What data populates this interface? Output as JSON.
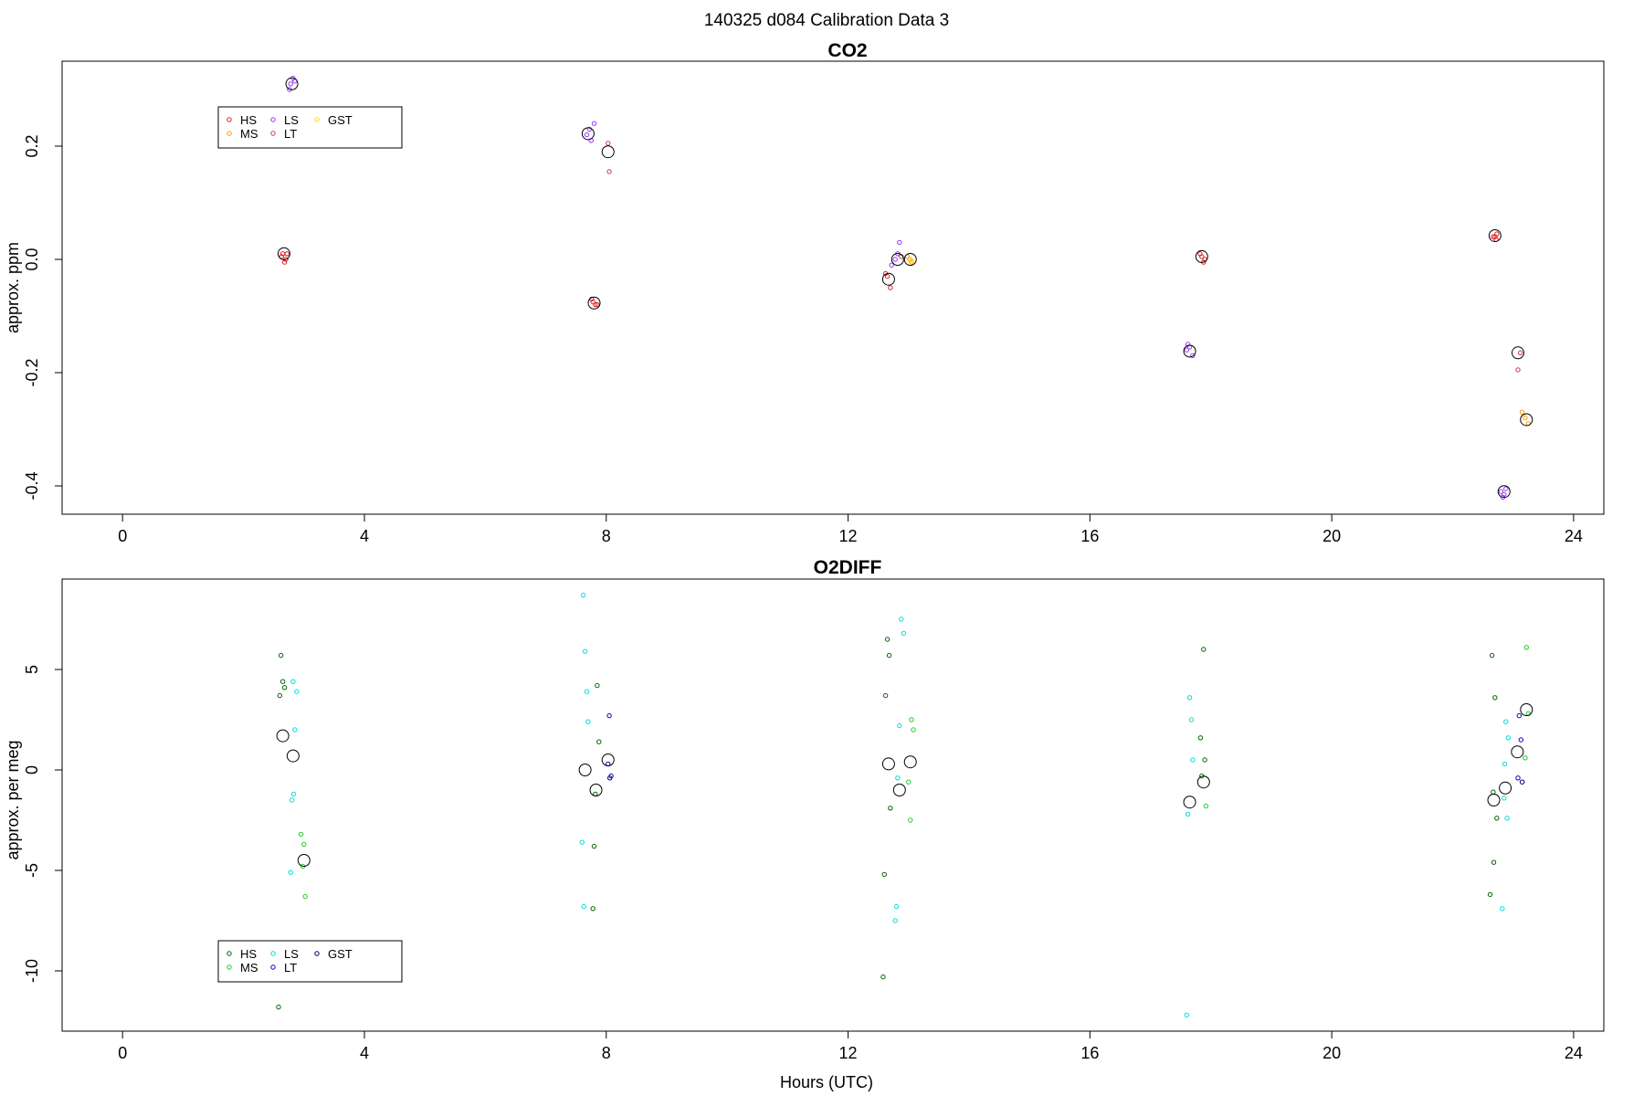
{
  "figure": {
    "supertitle": "140325   d084   Calibration Data 3"
  },
  "chart_data": [
    {
      "type": "scatter",
      "title": "CO2",
      "xlabel": "",
      "ylabel": "approx. ppm",
      "xlim": [
        -1.0,
        24.5
      ],
      "ylim": [
        -0.45,
        0.35
      ],
      "xticks": [
        0,
        4,
        8,
        12,
        16,
        20,
        24
      ],
      "yticks": [
        -0.4,
        -0.2,
        0.0,
        0.2
      ],
      "ytick_labels": [
        "-0.4",
        "-0.2",
        "0.0",
        "0.2"
      ],
      "grid": false,
      "legend": {
        "placement": "top-left",
        "entries": [
          {
            "label": "HS",
            "color": "#e41a1c"
          },
          {
            "label": "MS",
            "color": "#ff9900"
          },
          {
            "label": "LS",
            "color": "#9933ff"
          },
          {
            "label": "LT",
            "color": "#cc3366"
          },
          {
            "label": "GST",
            "color": "#ffdd00"
          }
        ]
      },
      "series": [
        {
          "name": "HS",
          "color": "#e41a1c",
          "x": [
            2.65,
            2.68,
            2.7,
            2.63,
            2.72,
            7.78,
            7.82,
            7.76,
            7.85,
            12.65,
            12.7,
            12.62,
            17.85,
            17.88,
            17.82,
            17.9,
            22.7,
            22.73,
            22.67,
            22.72
          ],
          "y": [
            0.01,
            -0.005,
            0.0,
            0.005,
            0.01,
            -0.075,
            -0.08,
            -0.07,
            -0.08,
            -0.03,
            -0.05,
            -0.025,
            0.005,
            -0.005,
            0.01,
            0.0,
            0.04,
            0.045,
            0.04,
            0.035
          ]
        },
        {
          "name": "MS",
          "color": "#ff9900",
          "x": [
            13.02,
            13.05,
            12.98,
            23.2,
            23.25,
            23.15
          ],
          "y": [
            0.0,
            -0.005,
            0.005,
            -0.28,
            -0.29,
            -0.27
          ]
        },
        {
          "name": "LS",
          "color": "#9933ff",
          "x": [
            2.78,
            2.82,
            2.76,
            2.85,
            7.68,
            7.72,
            7.75,
            7.8,
            12.78,
            12.82,
            12.85,
            12.72,
            17.6,
            17.65,
            17.7,
            17.62,
            22.8,
            22.85,
            22.88,
            22.83
          ],
          "y": [
            0.31,
            0.32,
            0.3,
            0.315,
            0.22,
            0.23,
            0.21,
            0.24,
            0.0,
            0.01,
            0.03,
            -0.01,
            -0.16,
            -0.155,
            -0.17,
            -0.15,
            -0.41,
            -0.415,
            -0.405,
            -0.42
          ]
        },
        {
          "name": "LT",
          "color": "#cc3366",
          "x": [
            8.03,
            8.05,
            12.88,
            23.08,
            23.12
          ],
          "y": [
            0.205,
            0.155,
            0.005,
            -0.195,
            -0.165
          ]
        },
        {
          "name": "GST",
          "color": "#ffdd00",
          "x": [
            13.05
          ],
          "y": [
            -0.002
          ]
        }
      ],
      "means": {
        "x": [
          2.67,
          2.8,
          7.8,
          7.7,
          8.03,
          12.67,
          12.82,
          13.03,
          17.85,
          17.65,
          22.7,
          22.85,
          23.08,
          23.22
        ],
        "y": [
          0.01,
          0.31,
          -0.077,
          0.222,
          0.19,
          -0.035,
          0.0,
          0.0,
          0.005,
          -0.162,
          0.042,
          -0.41,
          -0.165,
          -0.283
        ]
      }
    },
    {
      "type": "scatter",
      "title": "O2DIFF",
      "xlabel": "Hours (UTC)",
      "ylabel": "approx. per meg",
      "xlim": [
        -1.0,
        24.5
      ],
      "ylim": [
        -13.0,
        9.5
      ],
      "xticks": [
        0,
        4,
        8,
        12,
        16,
        20,
        24
      ],
      "yticks": [
        -10,
        -5,
        0,
        5
      ],
      "ytick_labels": [
        "-10",
        "-5",
        "0",
        "5"
      ],
      "grid": false,
      "legend": {
        "placement": "bottom-left",
        "entries": [
          {
            "label": "HS",
            "color": "#006600"
          },
          {
            "label": "MS",
            "color": "#22cc22"
          },
          {
            "label": "LS",
            "color": "#00dddd"
          },
          {
            "label": "LT",
            "color": "#0000cc"
          },
          {
            "label": "GST",
            "color": "#000066"
          }
        ]
      },
      "series": [
        {
          "name": "HS",
          "color": "#006600",
          "x": [
            2.62,
            2.65,
            2.68,
            2.6,
            2.58,
            7.85,
            7.88,
            7.82,
            7.8,
            7.78,
            12.65,
            12.68,
            12.62,
            12.7,
            12.6,
            12.58,
            17.88,
            17.9,
            17.85,
            17.83,
            22.65,
            22.7,
            22.73,
            22.68,
            22.62,
            22.67
          ],
          "y": [
            5.7,
            4.4,
            4.1,
            3.7,
            -11.8,
            4.2,
            1.4,
            -1.2,
            -3.8,
            -6.9,
            6.5,
            5.7,
            3.7,
            -1.9,
            -5.2,
            -10.3,
            6.0,
            0.5,
            -0.3,
            1.6,
            5.7,
            3.6,
            -2.4,
            -4.6,
            -6.2,
            -1.1
          ]
        },
        {
          "name": "MS",
          "color": "#22cc22",
          "x": [
            2.95,
            3.0,
            3.02,
            2.98,
            13.05,
            13.08,
            13.0,
            13.03,
            17.92,
            23.22,
            23.25,
            23.2
          ],
          "y": [
            -3.2,
            -3.7,
            -6.3,
            -4.8,
            2.5,
            2.0,
            -0.6,
            -2.5,
            -1.8,
            6.1,
            2.8,
            0.6
          ]
        },
        {
          "name": "LS",
          "color": "#00dddd",
          "x": [
            2.88,
            2.85,
            2.82,
            2.8,
            2.78,
            2.83,
            7.62,
            7.65,
            7.68,
            7.7,
            7.6,
            7.63,
            12.88,
            12.92,
            12.85,
            12.82,
            12.8,
            12.78,
            17.65,
            17.68,
            17.7,
            17.62,
            17.6,
            22.88,
            22.92,
            22.85,
            22.9,
            22.82,
            22.86
          ],
          "y": [
            3.9,
            2.0,
            4.4,
            -1.5,
            -5.1,
            -1.2,
            8.7,
            5.9,
            3.9,
            2.4,
            -3.6,
            -6.8,
            7.5,
            6.8,
            2.2,
            -0.4,
            -6.8,
            -7.5,
            3.6,
            2.5,
            0.5,
            -2.2,
            -12.2,
            2.4,
            1.6,
            -1.4,
            -2.4,
            -6.9,
            0.3
          ]
        },
        {
          "name": "LT",
          "color": "#0000cc",
          "x": [
            8.05,
            8.08,
            8.03,
            23.1,
            23.13,
            23.08
          ],
          "y": [
            2.7,
            -0.3,
            0.3,
            2.7,
            1.5,
            -0.4
          ]
        },
        {
          "name": "GST",
          "color": "#000066",
          "x": [
            8.06,
            23.15
          ],
          "y": [
            -0.4,
            -0.6
          ]
        }
      ],
      "means": {
        "x": [
          2.65,
          2.82,
          3.0,
          7.65,
          7.83,
          8.03,
          12.67,
          12.85,
          13.03,
          17.65,
          17.88,
          22.68,
          22.87,
          23.07,
          23.22
        ],
        "y": [
          1.7,
          0.7,
          -4.5,
          0.0,
          -1.0,
          0.5,
          0.3,
          -1.0,
          0.4,
          -1.6,
          -0.6,
          -1.5,
          -0.9,
          0.9,
          3.0
        ]
      }
    }
  ]
}
